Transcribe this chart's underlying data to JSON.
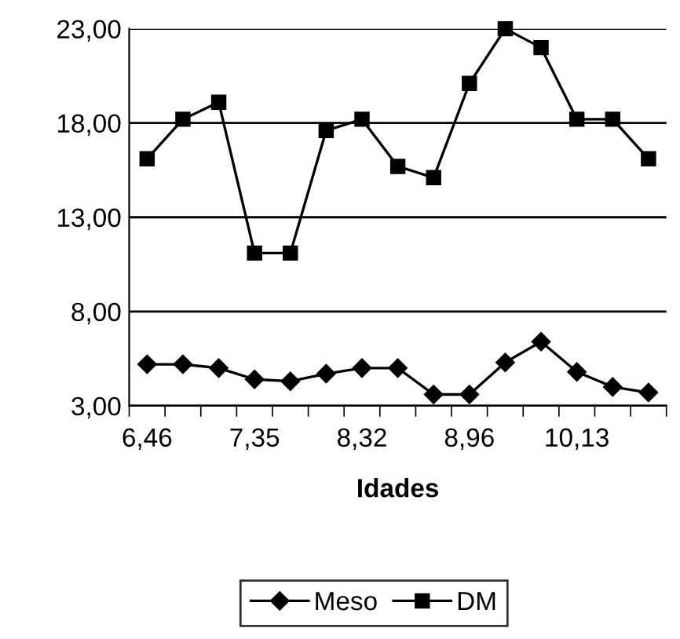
{
  "chart_data": {
    "type": "line",
    "xlabel": "Idades",
    "categories": [
      "6,46",
      null,
      null,
      "7,35",
      null,
      null,
      "8,32",
      null,
      null,
      "8,96",
      null,
      null,
      "10,13",
      null,
      null
    ],
    "series": [
      {
        "name": "Meso",
        "color": "#000000",
        "marker": "diamond",
        "values": [
          5.2,
          5.2,
          5.0,
          4.4,
          4.3,
          4.7,
          5.0,
          5.0,
          3.6,
          3.6,
          5.3,
          6.4,
          4.8,
          4.0,
          3.7
        ]
      },
      {
        "name": "DM",
        "color": "#000000",
        "marker": "square",
        "values": [
          16.1,
          18.2,
          19.1,
          11.1,
          11.1,
          17.6,
          18.2,
          15.7,
          15.1,
          20.1,
          23.0,
          22.0,
          18.2,
          18.2,
          16.1
        ]
      }
    ],
    "ylim": [
      3,
      23
    ],
    "yticks": [
      {
        "value": 3,
        "label": "3,00"
      },
      {
        "value": 8,
        "label": "8,00"
      },
      {
        "value": 13,
        "label": "13,00"
      },
      {
        "value": 18,
        "label": "18,00"
      },
      {
        "value": 23,
        "label": "23,00"
      }
    ],
    "grid": "y",
    "legend": "bottom"
  }
}
